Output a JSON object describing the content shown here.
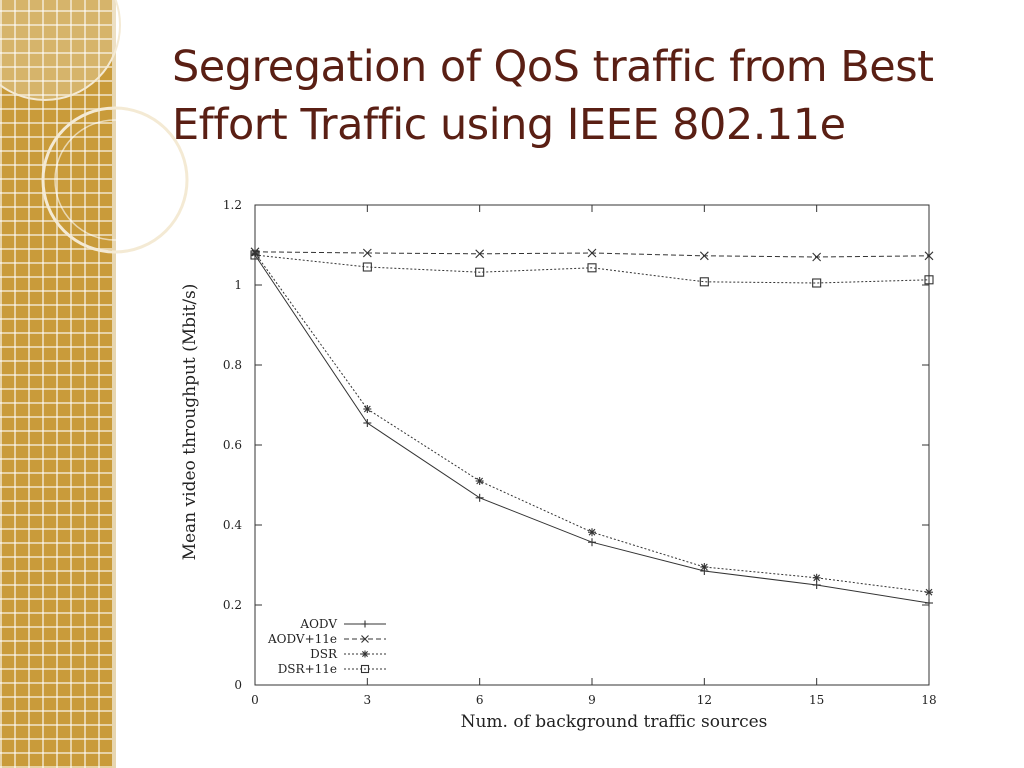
{
  "slide": {
    "title": "Segregation of QoS traffic from Best Effort Traffic using IEEE 802.11e"
  },
  "colors": {
    "sidebar": "#c99b3a",
    "title": "#5a1f14",
    "line": "#333333"
  },
  "chart_data": {
    "type": "line",
    "xlabel": "Num. of background traffic sources",
    "ylabel": "Mean video throughput (Mbit/s)",
    "x": [
      0,
      3,
      6,
      9,
      12,
      15,
      18
    ],
    "xlim": [
      0,
      18
    ],
    "ylim": [
      0,
      1.2
    ],
    "xticks": [
      0,
      3,
      6,
      9,
      12,
      15,
      18
    ],
    "yticks": [
      0,
      0.2,
      0.4,
      0.6,
      0.8,
      1,
      1.2
    ],
    "legend_position": "bottom-left",
    "grid": false,
    "series": [
      {
        "name": "AODV",
        "marker": "plus",
        "dash": "solid",
        "values": [
          1.075,
          0.655,
          0.468,
          0.357,
          0.285,
          0.25,
          0.205
        ]
      },
      {
        "name": "AODV+11e",
        "marker": "cross",
        "dash": "dashed",
        "values": [
          1.083,
          1.08,
          1.078,
          1.08,
          1.073,
          1.07,
          1.073
        ]
      },
      {
        "name": "DSR",
        "marker": "star",
        "dash": "dotted",
        "values": [
          1.08,
          0.69,
          0.51,
          0.382,
          0.295,
          0.268,
          0.232
        ]
      },
      {
        "name": "DSR+11e",
        "marker": "square",
        "dash": "dotted",
        "values": [
          1.075,
          1.045,
          1.032,
          1.043,
          1.008,
          1.005,
          1.013
        ]
      }
    ]
  }
}
